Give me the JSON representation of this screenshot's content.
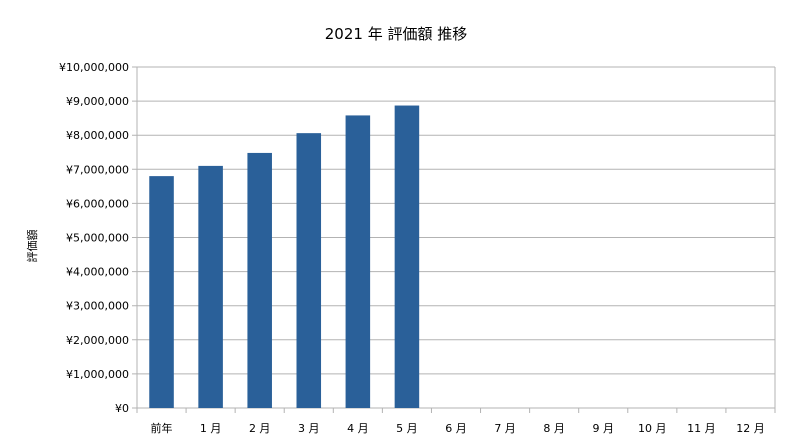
{
  "chart_data": {
    "type": "bar",
    "title": "2021 年 評価額 推移",
    "xlabel": "",
    "ylabel": "評価額",
    "categories": [
      "前年",
      "1 月",
      "2 月",
      "3 月",
      "4 月",
      "5 月",
      "6 月",
      "7 月",
      "8 月",
      "9 月",
      "10 月",
      "11 月",
      "12 月"
    ],
    "values": [
      6800000,
      7100000,
      7480000,
      8060000,
      8580000,
      8870000,
      null,
      null,
      null,
      null,
      null,
      null,
      null
    ],
    "ylim": [
      0,
      10000000
    ],
    "y_ticks": [
      "¥0",
      "¥1,000,000",
      "¥2,000,000",
      "¥3,000,000",
      "¥4,000,000",
      "¥5,000,000",
      "¥6,000,000",
      "¥7,000,000",
      "¥8,000,000",
      "¥9,000,000",
      "¥10,000,000"
    ],
    "grid": true,
    "legend": "none",
    "bar_color": "#2a6099",
    "grid_color": "#b3b3b3"
  }
}
